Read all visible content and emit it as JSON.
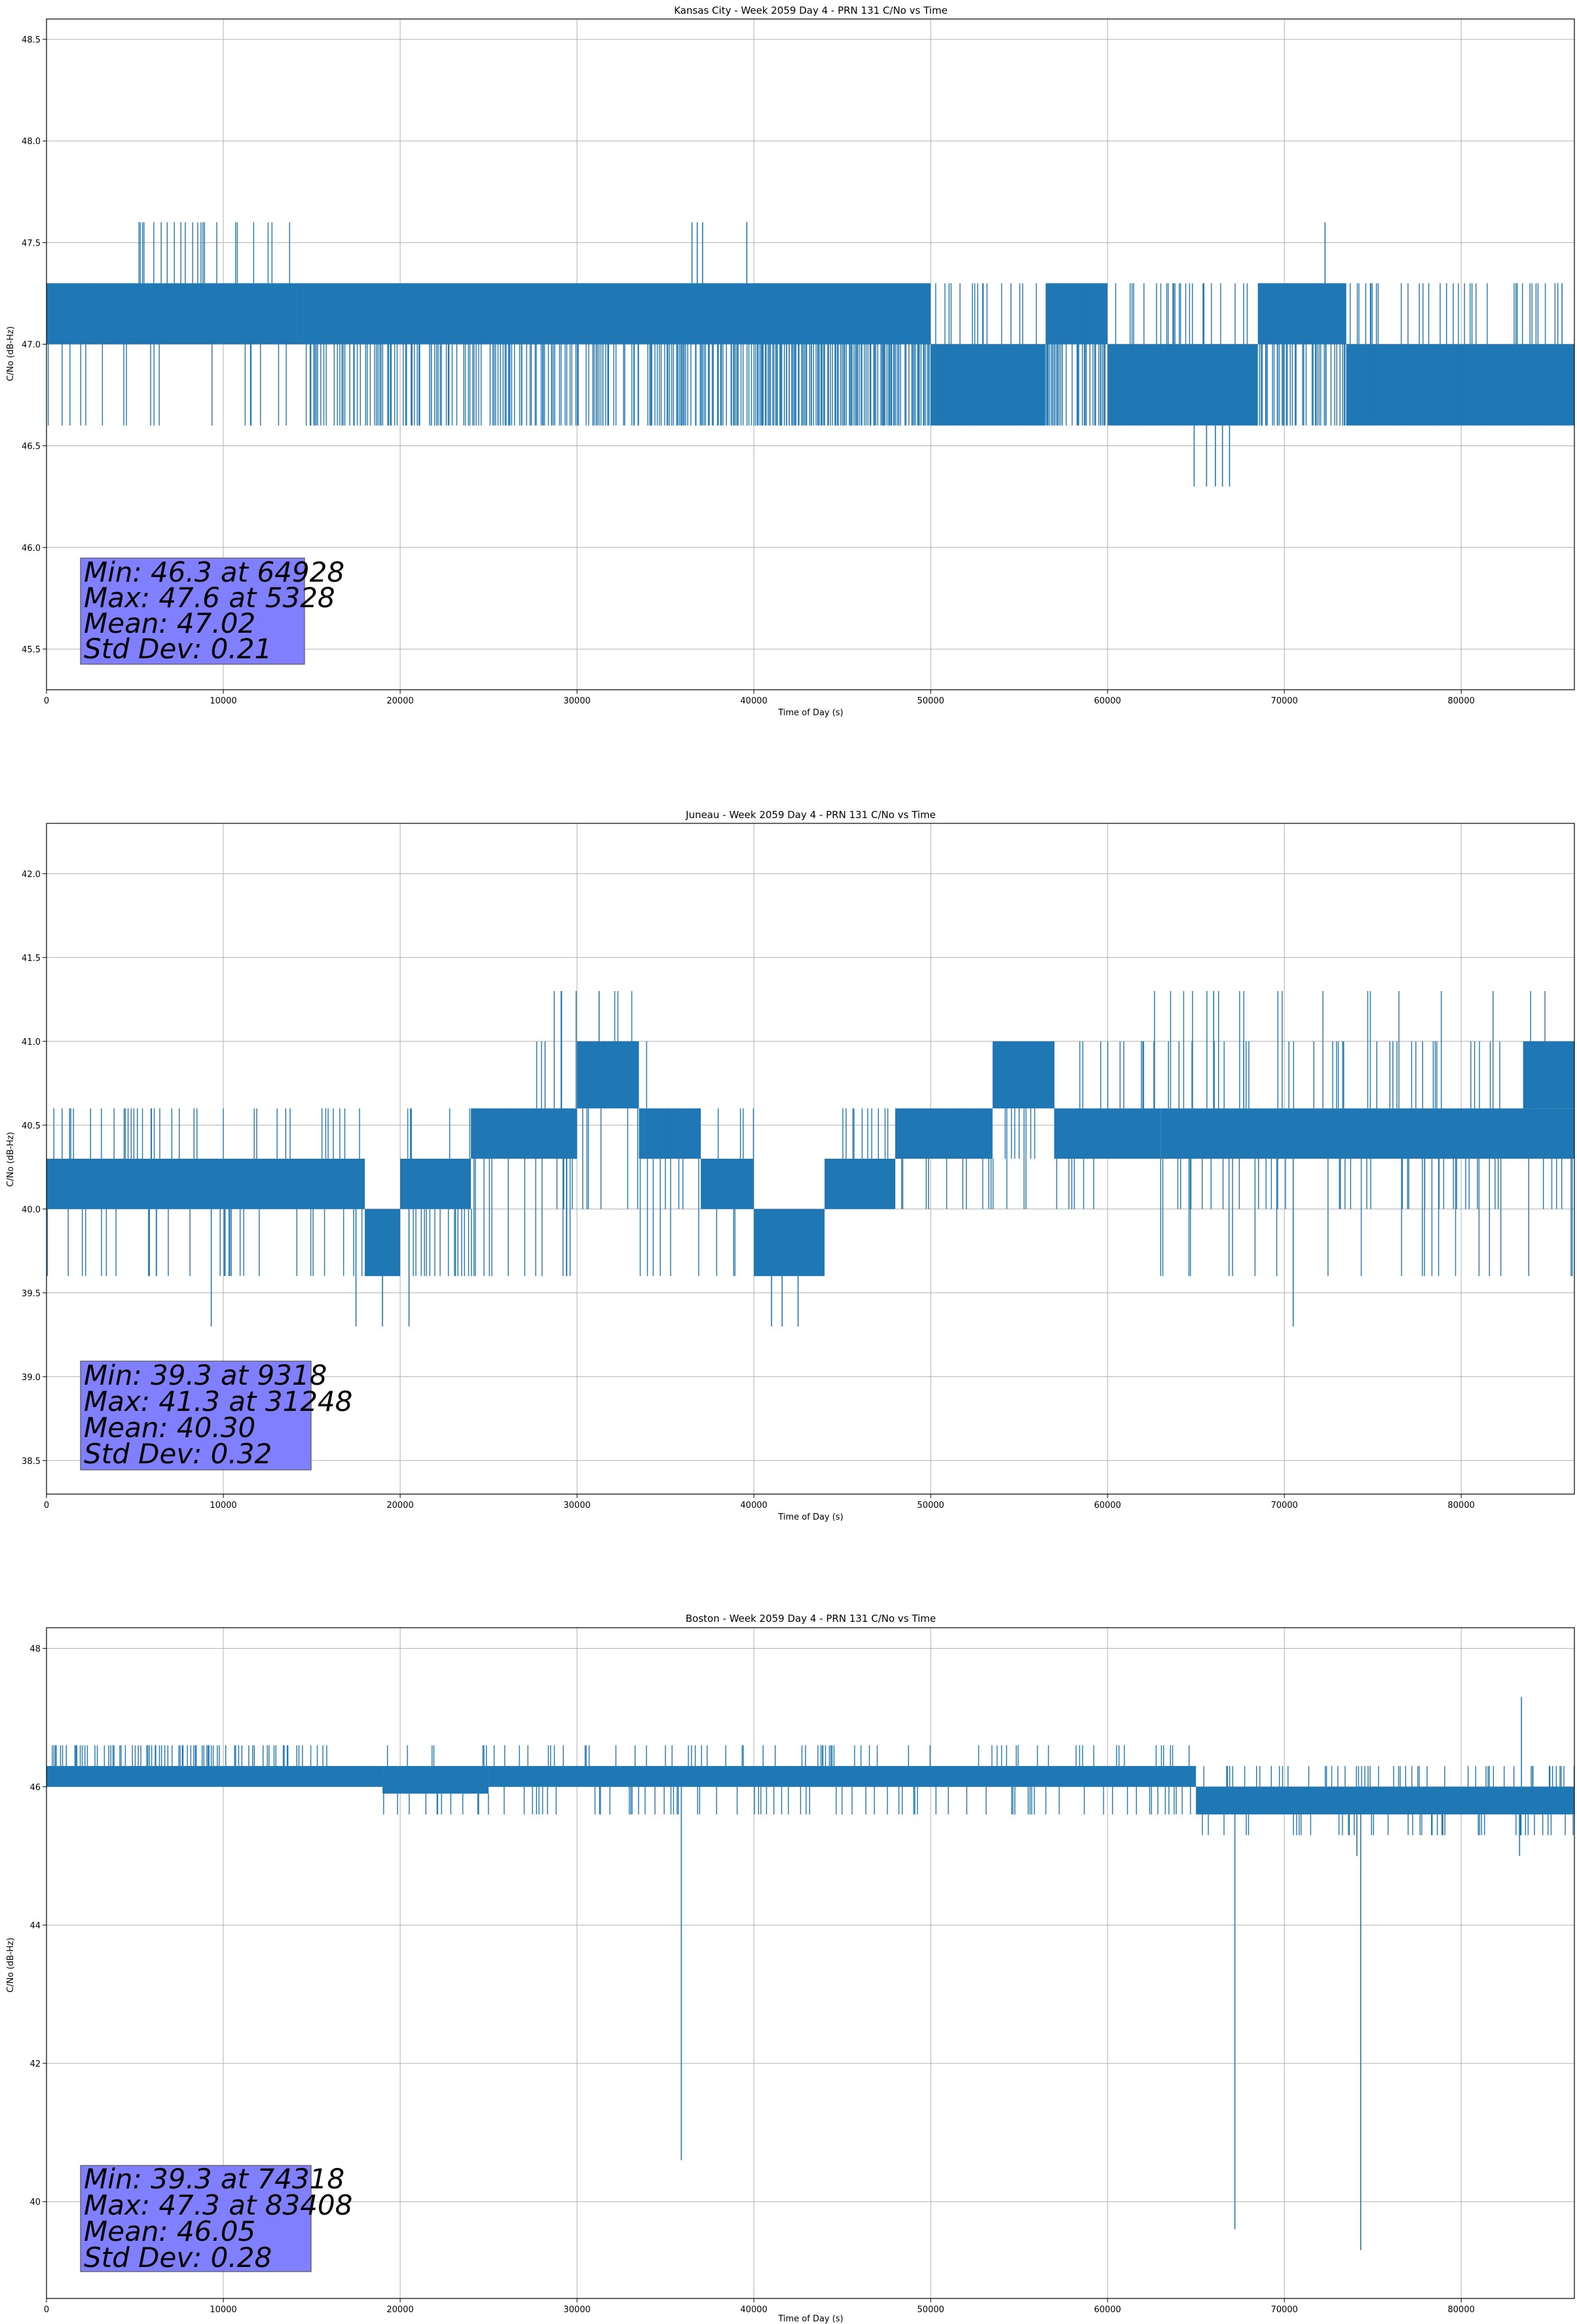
{
  "colors": {
    "series": "#1f77b4",
    "grid": "#b0b0b0",
    "stats_box": "#8080ff",
    "stats_border": "#555555"
  },
  "chart_data": [
    {
      "type": "line",
      "title": "Kansas City - Week 2059 Day 4 - PRN 131 C/No vs Time",
      "xlabel": "Time of Day (s)",
      "ylabel": "C/No (dB-Hz)",
      "xlim": [
        0,
        86400
      ],
      "ylim": [
        45.3,
        48.6
      ],
      "xticks": [
        0,
        10000,
        20000,
        30000,
        40000,
        50000,
        60000,
        70000,
        80000
      ],
      "xtick_labels": [
        "0",
        "10000",
        "20000",
        "30000",
        "40000",
        "50000",
        "60000",
        "70000",
        "80000"
      ],
      "yticks": [
        45.5,
        46.0,
        46.5,
        47.0,
        47.5,
        48.0,
        48.5
      ],
      "ytick_labels": [
        "45.5",
        "46.0",
        "46.5",
        "47.0",
        "47.5",
        "48.0",
        "48.5"
      ],
      "grid": true,
      "quantum": 0.3,
      "bands": [
        {
          "x": [
            0,
            14500
          ],
          "lo": 47.0,
          "hi": 47.3
        },
        {
          "x": [
            14500,
            40000
          ],
          "lo": 47.0,
          "hi": 47.3
        },
        {
          "x": [
            40000,
            50000
          ],
          "lo": 47.0,
          "hi": 47.3
        },
        {
          "x": [
            50000,
            56500
          ],
          "lo": 46.6,
          "hi": 47.0
        },
        {
          "x": [
            56500,
            60000
          ],
          "lo": 47.0,
          "hi": 47.3
        },
        {
          "x": [
            60000,
            68500
          ],
          "lo": 46.6,
          "hi": 47.0
        },
        {
          "x": [
            68500,
            73500
          ],
          "lo": 47.0,
          "hi": 47.3
        },
        {
          "x": [
            73500,
            86400
          ],
          "lo": 46.6,
          "hi": 47.0
        }
      ],
      "excursions": [
        {
          "x": [
            0,
            14000
          ],
          "levels": [
            47.3,
            47.0,
            46.6
          ],
          "density": 0.25
        },
        {
          "x": [
            5000,
            14000
          ],
          "levels": [
            47.6
          ],
          "density": 0.18
        },
        {
          "x": [
            14500,
            40000
          ],
          "levels": [
            46.6,
            46.6
          ],
          "density": 0.5
        },
        {
          "x": [
            40000,
            50000
          ],
          "levels": [
            46.6
          ],
          "density": 0.8
        },
        {
          "x": [
            50000,
            86400
          ],
          "levels": [
            47.0,
            47.3
          ],
          "density": 0.4
        },
        {
          "x": [
            56500,
            60000
          ],
          "levels": [
            46.6
          ],
          "density": 0.6
        },
        {
          "x": [
            68500,
            73500
          ],
          "levels": [
            46.6
          ],
          "density": 0.6
        }
      ],
      "spikes": [
        {
          "x": 36500,
          "y": 47.6
        },
        {
          "x": 36800,
          "y": 47.6
        },
        {
          "x": 37100,
          "y": 47.6
        },
        {
          "x": 39600,
          "y": 47.6
        },
        {
          "x": 72300,
          "y": 47.6
        },
        {
          "x": 64900,
          "y": 46.3
        },
        {
          "x": 65600,
          "y": 46.3
        },
        {
          "x": 66100,
          "y": 46.3
        },
        {
          "x": 66500,
          "y": 46.3
        },
        {
          "x": 66900,
          "y": 46.3
        }
      ],
      "stats": {
        "min": "Min: 46.3 at 64928",
        "max": "Max: 47.6 at 5328",
        "mean": "Mean: 47.02",
        "std": "Std Dev: 0.21"
      }
    },
    {
      "type": "line",
      "title": "Juneau - Week 2059 Day 4 - PRN 131 C/No vs Time",
      "xlabel": "Time of Day (s)",
      "ylabel": "C/No (dB-Hz)",
      "xlim": [
        0,
        86400
      ],
      "ylim": [
        38.3,
        42.3
      ],
      "xticks": [
        0,
        10000,
        20000,
        30000,
        40000,
        50000,
        60000,
        70000,
        80000
      ],
      "xtick_labels": [
        "0",
        "10000",
        "20000",
        "30000",
        "40000",
        "50000",
        "60000",
        "70000",
        "80000"
      ],
      "yticks": [
        38.5,
        39.0,
        39.5,
        40.0,
        40.5,
        41.0,
        41.5,
        42.0
      ],
      "ytick_labels": [
        "38.5",
        "39.0",
        "39.5",
        "40.0",
        "40.5",
        "41.0",
        "41.5",
        "42.0"
      ],
      "grid": true,
      "quantum": 0.3,
      "bands": [
        {
          "x": [
            0,
            18000
          ],
          "lo": 40.0,
          "hi": 40.3
        },
        {
          "x": [
            18000,
            20000
          ],
          "lo": 39.6,
          "hi": 40.0
        },
        {
          "x": [
            20000,
            24000
          ],
          "lo": 40.0,
          "hi": 40.3
        },
        {
          "x": [
            24000,
            30000
          ],
          "lo": 40.3,
          "hi": 40.6
        },
        {
          "x": [
            30000,
            33500
          ],
          "lo": 40.6,
          "hi": 41.0
        },
        {
          "x": [
            33500,
            37000
          ],
          "lo": 40.3,
          "hi": 40.6
        },
        {
          "x": [
            37000,
            40000
          ],
          "lo": 40.0,
          "hi": 40.3
        },
        {
          "x": [
            40000,
            44000
          ],
          "lo": 39.6,
          "hi": 40.0
        },
        {
          "x": [
            44000,
            48000
          ],
          "lo": 40.0,
          "hi": 40.3
        },
        {
          "x": [
            48000,
            53500
          ],
          "lo": 40.3,
          "hi": 40.6
        },
        {
          "x": [
            53500,
            57000
          ],
          "lo": 40.6,
          "hi": 41.0
        },
        {
          "x": [
            57000,
            63000
          ],
          "lo": 40.3,
          "hi": 40.6
        },
        {
          "x": [
            63000,
            86400
          ],
          "lo": 40.3,
          "hi": 40.6
        },
        {
          "x": [
            83500,
            86400
          ],
          "lo": 40.6,
          "hi": 41.0
        }
      ],
      "excursions": [
        {
          "x": [
            0,
            18000
          ],
          "levels": [
            40.6,
            39.6
          ],
          "density": 0.3
        },
        {
          "x": [
            20000,
            30000
          ],
          "levels": [
            40.6,
            39.6
          ],
          "density": 0.3
        },
        {
          "x": [
            27500,
            34000
          ],
          "levels": [
            41.0,
            41.3,
            40.0
          ],
          "density": 0.35
        },
        {
          "x": [
            33500,
            40000
          ],
          "levels": [
            40.6,
            40.0,
            39.6
          ],
          "density": 0.35
        },
        {
          "x": [
            44000,
            53500
          ],
          "levels": [
            40.6,
            40.0
          ],
          "density": 0.3
        },
        {
          "x": [
            53500,
            86400
          ],
          "levels": [
            40.0,
            41.0,
            40.3
          ],
          "density": 0.35
        },
        {
          "x": [
            62000,
            86400
          ],
          "levels": [
            39.6,
            41.3
          ],
          "density": 0.12
        }
      ],
      "spikes": [
        {
          "x": 9318,
          "y": 39.3
        },
        {
          "x": 17500,
          "y": 39.3
        },
        {
          "x": 19000,
          "y": 39.3
        },
        {
          "x": 20500,
          "y": 39.3
        },
        {
          "x": 41000,
          "y": 39.3
        },
        {
          "x": 41600,
          "y": 39.3
        },
        {
          "x": 42500,
          "y": 39.3
        },
        {
          "x": 70500,
          "y": 39.3
        },
        {
          "x": 31248,
          "y": 41.3
        },
        {
          "x": 66000,
          "y": 41.3
        }
      ],
      "stats": {
        "min": "Min: 39.3 at 9318",
        "max": "Max: 41.3 at 31248",
        "mean": "Mean: 40.30",
        "std": "Std Dev: 0.32"
      }
    },
    {
      "type": "line",
      "title": "Boston - Week 2059 Day 4 - PRN 131 C/No vs Time",
      "xlabel": "Time of Day (s)",
      "ylabel": "C/No (dB-Hz)",
      "xlim": [
        0,
        86400
      ],
      "ylim": [
        38.6,
        48.3
      ],
      "xticks": [
        0,
        10000,
        20000,
        30000,
        40000,
        50000,
        60000,
        70000,
        80000
      ],
      "xtick_labels": [
        "0",
        "10000",
        "20000",
        "30000",
        "40000",
        "50000",
        "60000",
        "70000",
        "80000"
      ],
      "yticks": [
        40,
        42,
        44,
        46,
        48
      ],
      "ytick_labels": [
        "40",
        "42",
        "44",
        "46",
        "48"
      ],
      "grid": true,
      "quantum": 0.3,
      "bands": [
        {
          "x": [
            0,
            19000
          ],
          "lo": 46.0,
          "hi": 46.3
        },
        {
          "x": [
            19000,
            25000
          ],
          "lo": 45.9,
          "hi": 46.3
        },
        {
          "x": [
            25000,
            65000
          ],
          "lo": 46.0,
          "hi": 46.3
        },
        {
          "x": [
            65000,
            86400
          ],
          "lo": 45.6,
          "hi": 46.0
        }
      ],
      "excursions": [
        {
          "x": [
            0,
            16000
          ],
          "levels": [
            46.6
          ],
          "density": 0.35
        },
        {
          "x": [
            19000,
            65000
          ],
          "levels": [
            45.6,
            46.6
          ],
          "density": 0.25
        },
        {
          "x": [
            65000,
            86400
          ],
          "levels": [
            46.3,
            45.3
          ],
          "density": 0.3
        }
      ],
      "spikes": [
        {
          "x": 35900,
          "y": 40.6
        },
        {
          "x": 67200,
          "y": 39.6
        },
        {
          "x": 74318,
          "y": 39.3
        },
        {
          "x": 83408,
          "y": 47.3
        },
        {
          "x": 83300,
          "y": 45.0
        },
        {
          "x": 74100,
          "y": 45.0
        }
      ],
      "stats": {
        "min": "Min: 39.3 at 74318",
        "max": "Max: 47.3 at 83408",
        "mean": "Mean: 46.05",
        "std": "Std Dev: 0.28"
      }
    }
  ]
}
